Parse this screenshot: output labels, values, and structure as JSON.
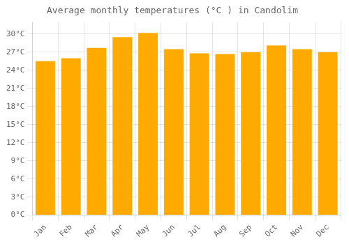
{
  "chart_data": {
    "type": "bar",
    "title": "Average monthly temperatures (°C ) in Candolim",
    "categories": [
      "Jan",
      "Feb",
      "Mar",
      "Apr",
      "May",
      "Jun",
      "Jul",
      "Aug",
      "Sep",
      "Oct",
      "Nov",
      "Dec"
    ],
    "values": [
      25.5,
      26.0,
      27.7,
      29.5,
      30.2,
      27.5,
      26.8,
      26.7,
      27.0,
      28.1,
      27.5,
      27.0
    ],
    "color": "#FFAA00",
    "ylim": [
      0,
      32
    ],
    "yticks": [
      {
        "value": 0,
        "label": "0°C"
      },
      {
        "value": 3,
        "label": "3°C"
      },
      {
        "value": 6,
        "label": "6°C"
      },
      {
        "value": 9,
        "label": "9°C"
      },
      {
        "value": 12,
        "label": "12°C"
      },
      {
        "value": 15,
        "label": "15°C"
      },
      {
        "value": 18,
        "label": "18°C"
      },
      {
        "value": 21,
        "label": "21°C"
      },
      {
        "value": 24,
        "label": "24°C"
      },
      {
        "value": 27,
        "label": "27°C"
      },
      {
        "value": 30,
        "label": "30°C"
      }
    ],
    "grid": true
  }
}
